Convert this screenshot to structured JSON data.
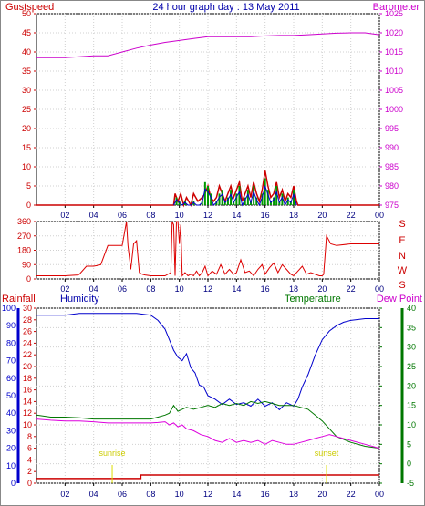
{
  "header": {
    "left_label": "Gustspeed",
    "title": "24 hour graph day : 13 May 2011",
    "right_label": "Barometer"
  },
  "wind_dir_panel": {
    "compass_labels": [
      "S",
      "E",
      "N",
      "W",
      "S"
    ]
  },
  "bottom_header": {
    "rainfall_label": "Rainfall",
    "humidity_label": "Humidity",
    "temperature_label": "Temperature",
    "dewpoint_label": "Dew Point"
  },
  "annotations": {
    "sunrise": "sunrise",
    "sunset": "sunset"
  },
  "colors": {
    "gust": "#cc0000",
    "wind": "#009900",
    "wind_avg": "#0000cc",
    "barometer": "#cc00cc",
    "humidity": "#0000cc",
    "temperature": "#007700",
    "dewpoint": "#dd00dd",
    "rainfall": "#cc0000",
    "sun": "#dddd00"
  },
  "chart_data": [
    {
      "type": "line",
      "title": "24 hour graph day : 13 May 2011",
      "x_ticks": [
        "02",
        "04",
        "06",
        "08",
        "10",
        "12",
        "14",
        "16",
        "18",
        "20",
        "22",
        "00"
      ],
      "xlim": [
        0,
        24
      ],
      "left_axis": {
        "label": "Gustspeed",
        "ticks": [
          0,
          5,
          10,
          15,
          20,
          25,
          30,
          35,
          40,
          45,
          50
        ],
        "ylim": [
          0,
          50
        ]
      },
      "right_axis": {
        "label": "Barometer",
        "ticks": [
          975,
          980,
          985,
          990,
          995,
          1000,
          1005,
          1010,
          1015,
          1020,
          1025
        ],
        "ylim": [
          975,
          1025
        ]
      },
      "series": [
        {
          "name": "Barometer",
          "axis": "right",
          "x": [
            0,
            2,
            4,
            5,
            6,
            7,
            8,
            9,
            10,
            11,
            12,
            13,
            14,
            15,
            16,
            17,
            18,
            19,
            20,
            21,
            22,
            23,
            24
          ],
          "y": [
            1013.5,
            1013.5,
            1014,
            1014,
            1015,
            1016,
            1016.8,
            1017.5,
            1018,
            1018.5,
            1019,
            1019,
            1019,
            1019,
            1019.2,
            1019.3,
            1019.3,
            1019.5,
            1019.7,
            1019.9,
            1020,
            1020,
            1019.5
          ]
        },
        {
          "name": "Gustspeed",
          "axis": "left",
          "x": [
            0,
            9.6,
            9.7,
            9.9,
            10.1,
            10.3,
            10.5,
            10.8,
            11,
            11.3,
            11.6,
            11.8,
            12,
            12.2,
            12.4,
            12.6,
            12.8,
            13,
            13.2,
            13.4,
            13.6,
            13.8,
            14,
            14.2,
            14.4,
            14.6,
            14.8,
            15,
            15.2,
            15.4,
            15.6,
            15.8,
            16,
            16.2,
            16.4,
            16.6,
            16.8,
            17,
            17.2,
            17.4,
            17.6,
            17.8,
            18,
            18.2,
            18.3,
            24
          ],
          "y": [
            0,
            0,
            3,
            1,
            3,
            0,
            2,
            0,
            3,
            1,
            2,
            3,
            5,
            2,
            1,
            2,
            5,
            3,
            1,
            3,
            5,
            2,
            4,
            6,
            1,
            3,
            5,
            2,
            6,
            3,
            1,
            4,
            9,
            5,
            2,
            3,
            6,
            2,
            4,
            1,
            3,
            2,
            5,
            1,
            0,
            0
          ]
        },
        {
          "name": "Windspeed",
          "axis": "left",
          "x": [
            9.6,
            9.8,
            10,
            10.2,
            10.4,
            10.6,
            10.8,
            11,
            11.2,
            11.4,
            11.6,
            11.8,
            12,
            12.2,
            12.4,
            12.6,
            12.8,
            13,
            13.2,
            13.4,
            13.6,
            13.8,
            14,
            14.2,
            14.4,
            14.6,
            14.8,
            15,
            15.2,
            15.4,
            15.6,
            15.8,
            16,
            16.2,
            16.4,
            16.6,
            16.8,
            17,
            17.2,
            17.4,
            17.6,
            17.8,
            18,
            18.2
          ],
          "y": [
            0,
            2,
            1,
            0,
            1,
            0,
            0,
            1,
            0,
            0,
            1,
            6,
            5,
            3,
            0,
            1,
            3,
            4,
            1,
            2,
            4,
            1,
            3,
            5,
            0,
            2,
            4,
            1,
            5,
            2,
            0,
            3,
            7,
            4,
            1,
            2,
            5,
            1,
            3,
            0,
            2,
            1,
            4,
            0
          ]
        }
      ]
    },
    {
      "type": "line",
      "x_ticks": [
        "02",
        "04",
        "06",
        "08",
        "10",
        "12",
        "14",
        "16",
        "18",
        "20",
        "22",
        "00"
      ],
      "xlim": [
        0,
        24
      ],
      "left_axis": {
        "ticks": [
          0,
          90,
          180,
          270,
          360
        ],
        "ylim": [
          0,
          360
        ]
      },
      "right_axis": {
        "labels": [
          "S",
          "E",
          "N",
          "W",
          "S"
        ]
      },
      "series": [
        {
          "name": "Wind Direction",
          "x": [
            0,
            1,
            2,
            2.9,
            3,
            3.5,
            4,
            4.3,
            4.5,
            5,
            5.5,
            6,
            6.3,
            6.4,
            6.6,
            6.8,
            7,
            7.2,
            7.4,
            7.6,
            8,
            8.5,
            9,
            9.4,
            9.5,
            9.6,
            9.7,
            9.8,
            9.9,
            10,
            10.1,
            10.2,
            10.4,
            10.6,
            10.8,
            11,
            11.2,
            11.4,
            11.6,
            11.8,
            12,
            12.3,
            12.6,
            12.9,
            13.2,
            13.5,
            13.8,
            14,
            14.3,
            14.6,
            14.9,
            15.2,
            15.5,
            15.8,
            16,
            16.3,
            16.6,
            16.9,
            17.2,
            17.5,
            17.8,
            18,
            18.3,
            18.6,
            18.9,
            19.2,
            19.5,
            19.8,
            20,
            20.1,
            20.3,
            20.6,
            21,
            22,
            23,
            24
          ],
          "y": [
            20,
            20,
            20,
            25,
            30,
            80,
            80,
            85,
            90,
            210,
            210,
            210,
            360,
            210,
            60,
            220,
            240,
            40,
            30,
            25,
            20,
            20,
            20,
            40,
            360,
            340,
            20,
            360,
            360,
            220,
            340,
            20,
            40,
            20,
            30,
            20,
            50,
            20,
            40,
            80,
            20,
            50,
            30,
            90,
            30,
            60,
            30,
            40,
            120,
            40,
            50,
            20,
            60,
            90,
            30,
            70,
            100,
            40,
            90,
            60,
            30,
            20,
            50,
            80,
            30,
            40,
            30,
            20,
            20,
            30,
            270,
            220,
            210,
            220,
            220,
            220
          ]
        }
      ]
    },
    {
      "type": "line",
      "x_ticks": [
        "02",
        "04",
        "06",
        "08",
        "10",
        "12",
        "14",
        "16",
        "18",
        "20",
        "22",
        "00"
      ],
      "xlim": [
        0,
        24
      ],
      "humidity_axis": {
        "label": "Humidity",
        "ticks": [
          0,
          10,
          20,
          30,
          40,
          50,
          60,
          70,
          80,
          90,
          100
        ],
        "ylim": [
          0,
          100
        ]
      },
      "rainfall_axis": {
        "label": "Rainfall",
        "ticks": [
          0,
          2,
          4,
          6,
          8,
          10,
          12,
          14,
          16,
          18,
          20,
          22,
          24,
          26,
          28,
          30
        ],
        "ylim": [
          0,
          30
        ]
      },
      "temperature_axis": {
        "label": "Temperature",
        "ticks": [
          -5,
          0,
          5,
          10,
          15,
          20,
          25,
          30,
          35,
          40
        ],
        "ylim": [
          -5,
          40
        ]
      },
      "series": [
        {
          "name": "Humidity",
          "axis": "humidity",
          "x": [
            0,
            1,
            2,
            3,
            4,
            5,
            6,
            7,
            8,
            8.5,
            9,
            9.3,
            9.6,
            9.9,
            10.2,
            10.5,
            10.8,
            11.1,
            11.4,
            11.7,
            12,
            12.5,
            13,
            13.5,
            14,
            14.5,
            15,
            15.5,
            16,
            16.5,
            17,
            17.5,
            18,
            18.3,
            18.6,
            19,
            19.5,
            20,
            20.5,
            21,
            21.5,
            22,
            23,
            24
          ],
          "y": [
            96,
            96,
            96,
            97,
            97,
            97,
            97,
            97,
            96,
            93,
            88,
            82,
            76,
            72,
            70,
            74,
            66,
            63,
            56,
            55,
            50,
            48,
            45,
            48,
            45,
            46,
            44,
            48,
            44,
            46,
            42,
            46,
            44,
            48,
            55,
            62,
            73,
            82,
            87,
            90,
            92,
            93,
            94,
            94
          ]
        },
        {
          "name": "Temperature",
          "axis": "temperature",
          "x": [
            0,
            1,
            2,
            3,
            4,
            5,
            6,
            7,
            8,
            8.5,
            9,
            9.3,
            9.6,
            9.9,
            10.2,
            10.5,
            11,
            11.5,
            12,
            12.5,
            13,
            13.5,
            14,
            14.5,
            15,
            15.5,
            16,
            16.5,
            17,
            17.5,
            18,
            18.5,
            19,
            19.5,
            20,
            20.5,
            21,
            22,
            23,
            24
          ],
          "y": [
            12.5,
            12,
            12,
            11.8,
            11.5,
            11.5,
            11.5,
            11.5,
            11.5,
            12,
            12.5,
            13,
            15,
            13.5,
            14,
            14.5,
            14,
            14.5,
            15,
            14.5,
            15.5,
            15,
            15.5,
            15,
            16,
            15.5,
            16,
            15.5,
            15,
            15,
            15,
            14.5,
            14,
            12.5,
            11,
            9,
            7,
            5.5,
            4.5,
            4
          ]
        },
        {
          "name": "Dew Point",
          "axis": "temperature",
          "x": [
            0,
            1,
            2,
            3,
            4,
            5,
            6,
            7,
            8,
            8.5,
            9,
            9.3,
            9.6,
            9.9,
            10.2,
            10.5,
            11,
            11.5,
            12,
            12.5,
            13,
            13.5,
            14,
            14.5,
            15,
            15.5,
            16,
            16.5,
            17,
            17.5,
            18,
            18.5,
            19,
            19.5,
            20,
            20.5,
            21,
            22,
            23,
            24
          ],
          "y": [
            11.5,
            11.2,
            11,
            11,
            10.8,
            10.5,
            10.5,
            10.5,
            10.5,
            10.6,
            10.8,
            10,
            10.5,
            9.5,
            10,
            9,
            8.5,
            7.5,
            7,
            6,
            5.5,
            6.5,
            5.5,
            6,
            5.5,
            6,
            5,
            6,
            5.5,
            5,
            5,
            5.5,
            6,
            6.5,
            7,
            7.5,
            7,
            6,
            5,
            4
          ]
        },
        {
          "name": "Rainfall",
          "axis": "rainfall",
          "x": [
            0,
            7.3,
            7.3,
            24
          ],
          "y": [
            0.8,
            0.8,
            1.4,
            1.4
          ]
        }
      ],
      "markers": [
        {
          "label": "sunrise",
          "x": 5.3
        },
        {
          "label": "sunset",
          "x": 20.3
        }
      ]
    }
  ]
}
